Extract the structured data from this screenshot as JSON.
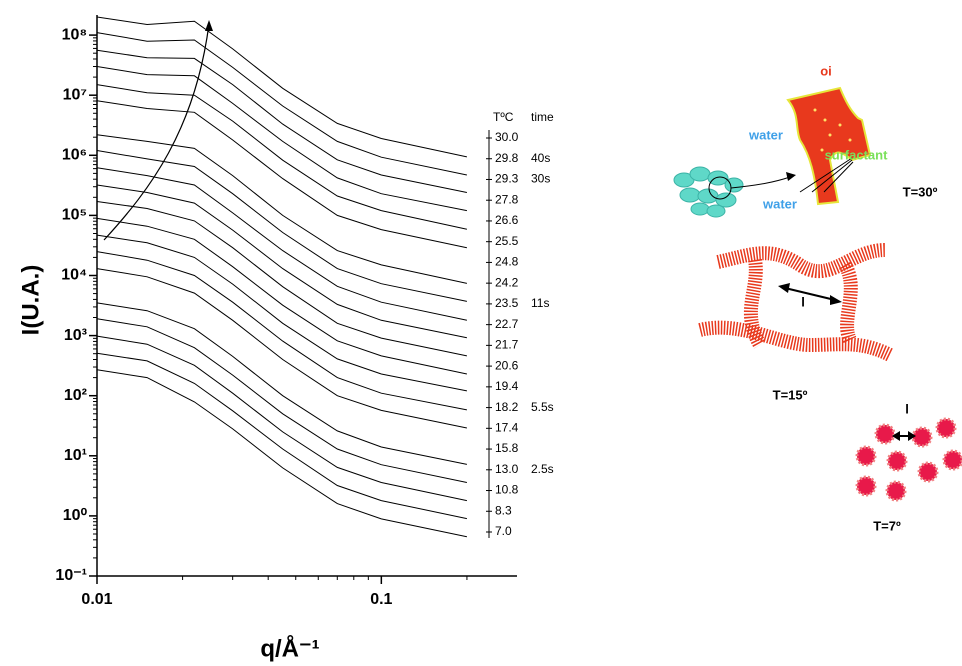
{
  "chart_data": {
    "type": "line",
    "xlabel": "q/Å⁻¹",
    "ylabel": "I(U.A.)",
    "log_x": true,
    "log_y": true,
    "color": "#000000",
    "x": [
      0.01,
      0.015,
      0.022,
      0.03,
      0.045,
      0.07,
      0.1,
      0.2
    ],
    "xlim": [
      0.01,
      0.3
    ],
    "xticks": [
      0.01,
      0.1
    ],
    "ylim": [
      0.1,
      200000000
    ],
    "yticks": [
      {
        "value": 0.1,
        "label": "10⁻¹"
      },
      {
        "value": 1,
        "label": "10⁰"
      },
      {
        "value": 10,
        "label": "10¹"
      },
      {
        "value": 100,
        "label": "10²"
      },
      {
        "value": 1000,
        "label": "10³"
      },
      {
        "value": 10000,
        "label": "10⁴"
      },
      {
        "value": 100000,
        "label": "10⁵"
      },
      {
        "value": 1000000,
        "label": "10⁶"
      },
      {
        "value": 10000000,
        "label": "10⁷"
      },
      {
        "value": 100000000,
        "label": "10⁸"
      }
    ],
    "legend_header": [
      "TºC",
      "time"
    ],
    "series": [
      {
        "name": "30.0",
        "values": [
          200000000,
          150000000,
          170000000,
          59000000,
          13000000,
          3400000,
          1900000,
          940000
        ]
      },
      {
        "name": "29.8",
        "time": "40s",
        "values": [
          110000000,
          79000000,
          83000000,
          29000000,
          6600000,
          1700000,
          930000,
          470000
        ]
      },
      {
        "name": "29.3",
        "time": "30s",
        "values": [
          56000000,
          42000000,
          41000000,
          15000000,
          3300000,
          840000,
          470000,
          240000
        ]
      },
      {
        "name": "27.8",
        "values": [
          30000000,
          22000000,
          21000000,
          7300000,
          1700000,
          420000,
          230000,
          120000
        ]
      },
      {
        "name": "26.6",
        "values": [
          15000000,
          11000000,
          10000000,
          3700000,
          830000,
          210000,
          120000,
          59000
        ]
      },
      {
        "name": "25.5",
        "values": [
          8100000,
          6000000,
          5200000,
          1800000,
          410000,
          100000,
          58000,
          29000
        ]
      },
      {
        "name": "24.8",
        "values": [
          2200000,
          1700000,
          1300000,
          460000,
          100000,
          26000,
          15000,
          7400
        ]
      },
      {
        "name": "24.2",
        "values": [
          1200000,
          870000,
          650000,
          230000,
          52000,
          13000,
          7300,
          3700
        ]
      },
      {
        "name": "23.5",
        "time": "11s",
        "values": [
          620000,
          460000,
          320000,
          110000,
          26000,
          6600,
          3600,
          1800
        ]
      },
      {
        "name": "22.7",
        "values": [
          320000,
          240000,
          160000,
          57000,
          13000,
          3300,
          1800,
          920
        ]
      },
      {
        "name": "21.7",
        "values": [
          170000,
          130000,
          81000,
          29000,
          6500,
          1600,
          910,
          460
        ]
      },
      {
        "name": "20.6",
        "values": [
          89000,
          66000,
          40000,
          14000,
          3200,
          820,
          460,
          230
        ]
      },
      {
        "name": "19.4",
        "values": [
          47000,
          35000,
          20000,
          7200,
          1600,
          410,
          230,
          120
        ]
      },
      {
        "name": "18.2",
        "time": "5.5s",
        "values": [
          25000,
          18000,
          10000,
          3600,
          810,
          200,
          110,
          58
        ]
      },
      {
        "name": "17.4",
        "values": [
          13000,
          9500,
          5100,
          1800,
          400,
          100,
          57,
          29
        ]
      },
      {
        "name": "15.8",
        "values": [
          3500,
          2600,
          1300,
          450,
          100,
          26,
          14,
          7.2
        ]
      },
      {
        "name": "13.0",
        "time": "2.5s",
        "values": [
          1900,
          1400,
          630,
          220,
          50,
          13,
          7.1,
          3.6
        ]
      },
      {
        "name": "10.8",
        "values": [
          980,
          720,
          320,
          110,
          25,
          6.4,
          3.6,
          1.8
        ]
      },
      {
        "name": "8.3",
        "values": [
          510,
          380,
          160,
          56,
          13,
          3.2,
          1.8,
          0.9
        ]
      },
      {
        "name": "7.0",
        "values": [
          270,
          200,
          79,
          28,
          6.3,
          1.6,
          0.89,
          0.45
        ]
      }
    ],
    "annotations": [
      {
        "text": "oi",
        "color": "#e8391d"
      },
      {
        "text": "water",
        "color": "#3fa0e8"
      },
      {
        "text": "surfactant",
        "color": "#7be05a"
      },
      {
        "text": "water",
        "color": "#3fa0e8"
      },
      {
        "text": "T=30º",
        "color": "#000000"
      },
      {
        "text": "l",
        "color": "#000000"
      },
      {
        "text": "T=15º",
        "color": "#000000"
      },
      {
        "text": "l",
        "color": "#000000"
      },
      {
        "text": "T=7º",
        "color": "#000000"
      }
    ]
  }
}
